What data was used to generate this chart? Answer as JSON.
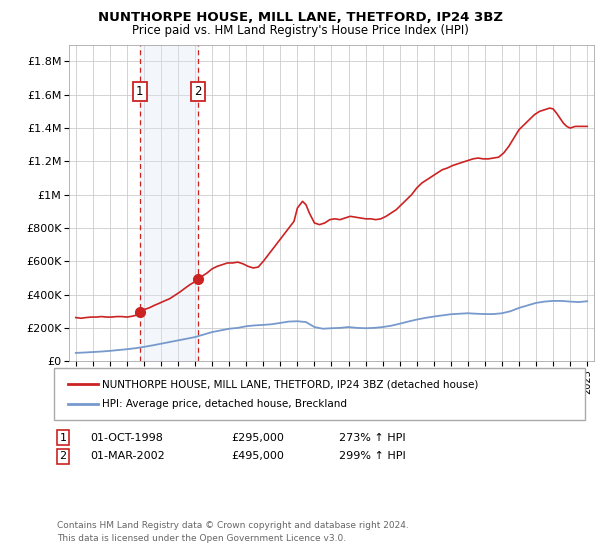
{
  "title": "NUNTHORPE HOUSE, MILL LANE, THETFORD, IP24 3BZ",
  "subtitle": "Price paid vs. HM Land Registry's House Price Index (HPI)",
  "legend_line1": "NUNTHORPE HOUSE, MILL LANE, THETFORD, IP24 3BZ (detached house)",
  "legend_line2": "HPI: Average price, detached house, Breckland",
  "footer_line1": "Contains HM Land Registry data © Crown copyright and database right 2024.",
  "footer_line2": "This data is licensed under the Open Government Licence v3.0.",
  "sale1_label": "1",
  "sale1_date": "01-OCT-1998",
  "sale1_price": "£295,000",
  "sale1_hpi": "273% ↑ HPI",
  "sale1_year": 1998.75,
  "sale1_value": 295000,
  "sale2_label": "2",
  "sale2_date": "01-MAR-2002",
  "sale2_price": "£495,000",
  "sale2_hpi": "299% ↑ HPI",
  "sale2_year": 2002.17,
  "sale2_value": 495000,
  "ylim": [
    0,
    1900000
  ],
  "xlim_start": 1994.6,
  "xlim_end": 2025.4,
  "red_line_color": "#cc2222",
  "blue_line_color": "#7799cc",
  "shade_color": "#dde8f5",
  "vline_color": "#cc2222",
  "background_color": "#ffffff",
  "grid_color": "#cccccc",
  "yticks": [
    0,
    200000,
    400000,
    600000,
    800000,
    1000000,
    1200000,
    1400000,
    1600000,
    1800000
  ],
  "ytick_labels": [
    "£0",
    "£200K",
    "£400K",
    "£600K",
    "£800K",
    "£1M",
    "£1.2M",
    "£1.4M",
    "£1.6M",
    "£1.8M"
  ],
  "xticks": [
    1995,
    1996,
    1997,
    1998,
    1999,
    2000,
    2001,
    2002,
    2003,
    2004,
    2005,
    2006,
    2007,
    2008,
    2009,
    2010,
    2011,
    2012,
    2013,
    2014,
    2015,
    2016,
    2017,
    2018,
    2019,
    2020,
    2021,
    2022,
    2023,
    2024,
    2025
  ],
  "red_x": [
    1995.0,
    1995.3,
    1995.6,
    1995.9,
    1996.2,
    1996.5,
    1996.8,
    1997.1,
    1997.4,
    1997.7,
    1998.0,
    1998.3,
    1998.5,
    1998.75,
    1999.0,
    1999.3,
    1999.6,
    1999.9,
    2000.2,
    2000.5,
    2000.8,
    2001.1,
    2001.4,
    2001.7,
    2002.0,
    2002.17,
    2002.4,
    2002.7,
    2003.0,
    2003.3,
    2003.6,
    2003.9,
    2004.2,
    2004.5,
    2004.8,
    2005.1,
    2005.4,
    2005.7,
    2006.0,
    2006.3,
    2006.6,
    2006.9,
    2007.2,
    2007.5,
    2007.8,
    2008.0,
    2008.3,
    2008.5,
    2008.7,
    2009.0,
    2009.3,
    2009.6,
    2009.9,
    2010.2,
    2010.5,
    2010.8,
    2011.1,
    2011.4,
    2011.7,
    2012.0,
    2012.3,
    2012.6,
    2012.9,
    2013.2,
    2013.5,
    2013.8,
    2014.1,
    2014.4,
    2014.7,
    2015.0,
    2015.3,
    2015.6,
    2015.9,
    2016.2,
    2016.5,
    2016.8,
    2017.1,
    2017.4,
    2017.7,
    2018.0,
    2018.3,
    2018.6,
    2018.9,
    2019.2,
    2019.5,
    2019.8,
    2020.1,
    2020.4,
    2020.7,
    2021.0,
    2021.3,
    2021.6,
    2021.9,
    2022.2,
    2022.5,
    2022.8,
    2023.0,
    2023.2,
    2023.4,
    2023.6,
    2023.8,
    2024.0,
    2024.3,
    2024.6,
    2024.9,
    2025.0
  ],
  "red_y": [
    262000,
    258000,
    262000,
    265000,
    265000,
    268000,
    265000,
    265000,
    268000,
    268000,
    265000,
    270000,
    275000,
    295000,
    310000,
    320000,
    335000,
    348000,
    362000,
    375000,
    395000,
    415000,
    438000,
    460000,
    478000,
    495000,
    510000,
    530000,
    555000,
    570000,
    580000,
    590000,
    590000,
    595000,
    585000,
    570000,
    560000,
    565000,
    600000,
    640000,
    680000,
    720000,
    760000,
    800000,
    840000,
    920000,
    960000,
    940000,
    890000,
    830000,
    820000,
    830000,
    850000,
    855000,
    850000,
    860000,
    870000,
    865000,
    860000,
    855000,
    855000,
    850000,
    855000,
    870000,
    890000,
    910000,
    940000,
    970000,
    1000000,
    1040000,
    1070000,
    1090000,
    1110000,
    1130000,
    1150000,
    1160000,
    1175000,
    1185000,
    1195000,
    1205000,
    1215000,
    1220000,
    1215000,
    1215000,
    1220000,
    1225000,
    1250000,
    1290000,
    1340000,
    1390000,
    1420000,
    1450000,
    1480000,
    1500000,
    1510000,
    1520000,
    1515000,
    1490000,
    1460000,
    1430000,
    1410000,
    1400000,
    1410000,
    1410000,
    1410000,
    1410000
  ],
  "blue_x": [
    1995.0,
    1995.5,
    1996.0,
    1996.5,
    1997.0,
    1997.5,
    1998.0,
    1998.5,
    1999.0,
    1999.5,
    2000.0,
    2000.5,
    2001.0,
    2001.5,
    2002.0,
    2002.5,
    2003.0,
    2003.5,
    2004.0,
    2004.5,
    2005.0,
    2005.5,
    2006.0,
    2006.5,
    2007.0,
    2007.5,
    2008.0,
    2008.5,
    2009.0,
    2009.5,
    2010.0,
    2010.5,
    2011.0,
    2011.5,
    2012.0,
    2012.5,
    2013.0,
    2013.5,
    2014.0,
    2014.5,
    2015.0,
    2015.5,
    2016.0,
    2016.5,
    2017.0,
    2017.5,
    2018.0,
    2018.5,
    2019.0,
    2019.5,
    2020.0,
    2020.5,
    2021.0,
    2021.5,
    2022.0,
    2022.5,
    2023.0,
    2023.5,
    2024.0,
    2024.5,
    2025.0
  ],
  "blue_y": [
    50000,
    52000,
    55000,
    58000,
    62000,
    67000,
    72000,
    78000,
    86000,
    95000,
    105000,
    115000,
    125000,
    135000,
    145000,
    160000,
    175000,
    185000,
    195000,
    200000,
    210000,
    215000,
    218000,
    222000,
    230000,
    238000,
    240000,
    235000,
    205000,
    195000,
    198000,
    200000,
    205000,
    200000,
    198000,
    200000,
    205000,
    213000,
    225000,
    238000,
    250000,
    260000,
    268000,
    275000,
    282000,
    285000,
    288000,
    285000,
    283000,
    283000,
    288000,
    300000,
    320000,
    335000,
    350000,
    358000,
    362000,
    362000,
    358000,
    355000,
    360000
  ]
}
